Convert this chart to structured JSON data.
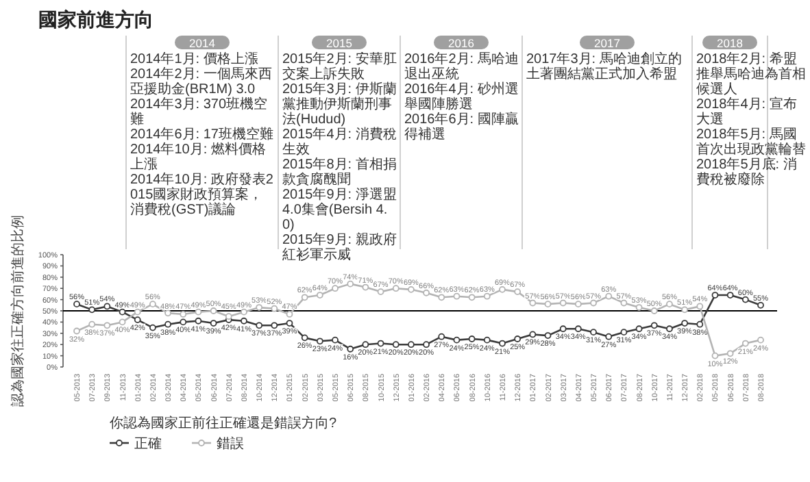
{
  "chart_data": {
    "type": "line",
    "title": "國家前進方向",
    "ylabel": "認為國家往正確方向前進的比例",
    "legend_title": "你認為國家正前往正確還是錯誤方向?",
    "categories": [
      "05-2013",
      "07-2013",
      "09-2013",
      "11-2013",
      "01-2014",
      "02-2014",
      "03-2014",
      "04-2014",
      "05-2014",
      "06-2014",
      "07-2014",
      "08-2014",
      "10-2014",
      "12-2014",
      "01-2015",
      "02-2015",
      "03-2015",
      "05-2015",
      "06-2015",
      "08-2015",
      "10-2015",
      "12-2015",
      "01-2016",
      "02-2016",
      "04-2016",
      "06-2016",
      "08-2016",
      "10-2016",
      "11-2016",
      "12-2016",
      "01-2017",
      "02-2017",
      "03-2017",
      "04-2017",
      "05-2017",
      "06-2017",
      "07-2017",
      "08-2017",
      "10-2017",
      "11-2017",
      "12-2017",
      "02-2018",
      "05-2018",
      "06-2018",
      "07-2018",
      "08-2018"
    ],
    "series": [
      {
        "name": "正確",
        "color": "#3a3a3a",
        "values": [
          56,
          51,
          54,
          49,
          42,
          35,
          38,
          40,
          41,
          39,
          42,
          41,
          37,
          37,
          39,
          26,
          23,
          24,
          16,
          20,
          21,
          20,
          20,
          20,
          27,
          24,
          25,
          24,
          21,
          25,
          29,
          28,
          34,
          34,
          31,
          27,
          31,
          34,
          37,
          34,
          39,
          38,
          64,
          64,
          60,
          55
        ],
        "value_labels": [
          "56%",
          "51%",
          "54%",
          "49%",
          "42%",
          "35%",
          "38%",
          "40%",
          "41%",
          "39%",
          "42%",
          "41%",
          "37%",
          "37%",
          "39%",
          "26%",
          "23%",
          "24%",
          "16%",
          "20%",
          "21%",
          "20%",
          "20%",
          "20%",
          "27%",
          "24%",
          "25%",
          "24%",
          "21%",
          "25%",
          "29%",
          "28%",
          "34%",
          "34%",
          "31%",
          "27%",
          "31%",
          "34%",
          "37%",
          "34%",
          "39%",
          "38%",
          "64%",
          "64%",
          "60%",
          "55%"
        ]
      },
      {
        "name": "錯誤",
        "color": "#b3b3b3",
        "values": [
          32,
          38,
          37,
          40,
          49,
          56,
          48,
          47,
          49,
          50,
          45,
          49,
          53,
          52,
          47,
          62,
          64,
          70,
          74,
          71,
          67,
          70,
          69,
          66,
          62,
          63,
          62,
          63,
          69,
          67,
          57,
          56,
          57,
          56,
          57,
          63,
          57,
          53,
          50,
          56,
          51,
          54,
          10,
          12,
          21,
          24
        ],
        "value_labels": [
          "32%",
          "38%",
          "37%",
          "40%",
          "49%",
          "56%",
          "48%",
          "47%",
          "49%",
          "50%",
          "45%",
          "49%",
          "53%",
          "52%",
          "47%",
          "62%",
          "64%",
          "70%",
          "74%",
          "71%",
          "67%",
          "70%",
          "69%",
          "66%",
          "62%",
          "63%",
          "62%",
          "63%",
          "69%",
          "67%",
          "57%",
          "56%",
          "57%",
          "56%",
          "57%",
          "63%",
          "57%",
          "53%",
          "50%",
          "56%",
          "51%",
          "54%",
          "10%",
          "12%",
          "21%",
          "24%"
        ]
      }
    ],
    "ylim": [
      0,
      100
    ],
    "yticks": [
      {
        "value": 0,
        "label": "0%"
      },
      {
        "value": 10,
        "label": "10%"
      },
      {
        "value": 20,
        "label": "20%"
      },
      {
        "value": 30,
        "label": "30%"
      },
      {
        "value": 40,
        "label": "40%"
      },
      {
        "value": 50,
        "label": "50%"
      },
      {
        "value": 60,
        "label": "60%"
      },
      {
        "value": 70,
        "label": "70%"
      },
      {
        "value": 80,
        "label": "80%"
      },
      {
        "value": 90,
        "label": "90%"
      },
      {
        "value": 100,
        "label": "100%"
      }
    ],
    "ref_lines": [
      {
        "axis": "y",
        "value": 50,
        "color": "#000000"
      }
    ],
    "annotations": [
      "2014",
      "2014年1月: 價格上漲",
      "2014年2月: 一個馬來西亞援助金(BR1M) 3.0",
      "2014年3月: 370班機空難",
      "2014年6月: 17班機空難",
      "2014年10月: 燃料價格上漲",
      "2014年10月: 政府發表2015國家財政預算案，消費稅(GST)議論",
      "2015",
      "2015年2月: 安華肛交案上訴失敗",
      "2015年3月: 伊斯蘭黨推動伊斯蘭刑事法(Hudud)",
      "2015年4月: 消費稅生效",
      "2015年8月: 首相捐款貪腐醜聞",
      "2015年9月: 淨選盟4.0集會(Bersih 4.0)",
      "2015年9月: 親政府紅衫軍示威",
      "2016",
      "2016年2月: 馬哈迪退出巫統",
      "2016年4月: 砂州選舉國陣勝選",
      "2016年6月: 國陣贏得補選",
      "2017",
      "2017年3月: 馬哈迪創立的土著團結黨正式加入希盟",
      "2018",
      "2018年2月: 希盟推舉馬哈迪為首相候選人",
      "2018年4月: 宣布大選",
      "2018年5月: 馬國首次出現政黨輪替",
      "2018年5月底: 消費稅被廢除"
    ],
    "legend": "bottom left",
    "marker": "circle"
  }
}
